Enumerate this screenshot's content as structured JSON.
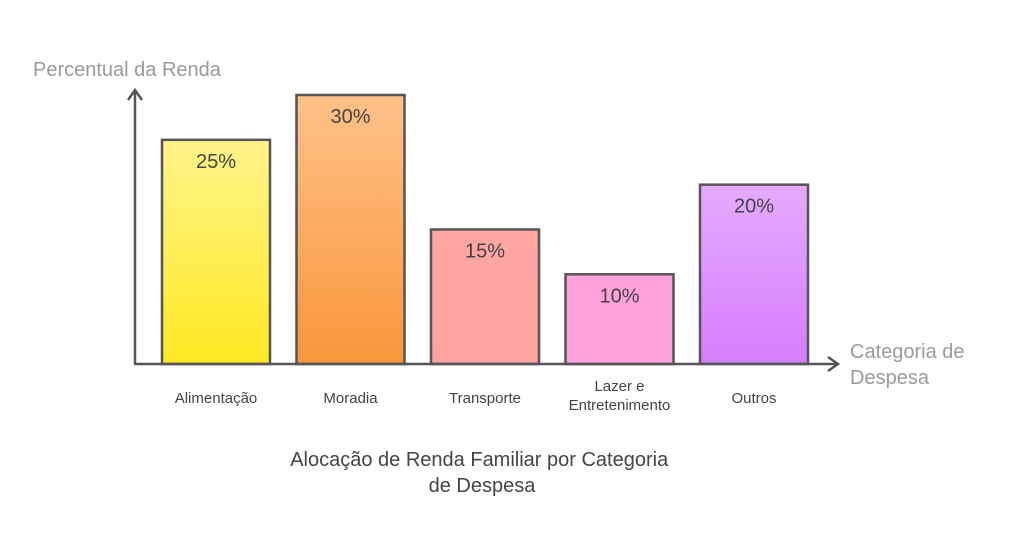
{
  "chart_data": {
    "type": "bar",
    "title": "Alocação de Renda Familiar por Categoria de Despesa",
    "title_lines": [
      "Alocação de Renda Familiar por Categoria",
      "de Despesa"
    ],
    "ylabel": "Percentual da Renda",
    "xlabel": "Categoria de Despesa",
    "xlabel_lines": [
      "Categoria de",
      "Despesa"
    ],
    "categories": [
      "Alimentação",
      "Moradia",
      "Transporte",
      "Lazer e Entretenimento",
      "Outros"
    ],
    "category_lines": [
      [
        "Alimentação"
      ],
      [
        "Moradia"
      ],
      [
        "Transporte"
      ],
      [
        "Lazer e",
        "Entretenimento"
      ],
      [
        "Outros"
      ]
    ],
    "values": [
      25,
      30,
      15,
      10,
      20
    ],
    "data_labels": [
      "25%",
      "30%",
      "15%",
      "10%",
      "20%"
    ],
    "unit": "%",
    "ylim": [
      0,
      30
    ],
    "grid": false,
    "colors": [
      [
        "#fff38a",
        "#ffe822"
      ],
      [
        "#ffc189",
        "#f9963a"
      ],
      [
        "#ffa5a2",
        "#ffa3a0"
      ],
      [
        "#ffa3dc",
        "#ffa0da"
      ],
      [
        "#e5aaff",
        "#d57dfb"
      ]
    ],
    "stroke_color": "#555555"
  }
}
